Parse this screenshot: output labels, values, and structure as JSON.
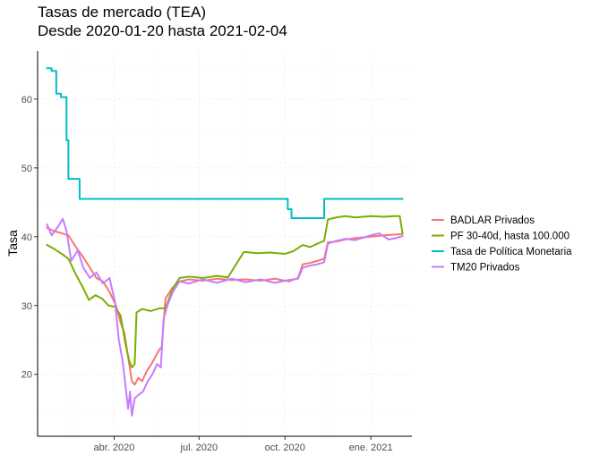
{
  "chart_data": {
    "type": "line",
    "title": "Tasas de mercado (TEA)",
    "subtitle": "Desde 2020-01-20 hasta 2021-02-04",
    "xlabel": "",
    "ylabel": "Tasa",
    "xlim": [
      "2020-01-10",
      "2021-02-14"
    ],
    "ylim": [
      11,
      67
    ],
    "x_ticks": [
      {
        "date": "2020-04-01",
        "label": "abr. 2020"
      },
      {
        "date": "2020-07-01",
        "label": "jul. 2020"
      },
      {
        "date": "2020-10-01",
        "label": "oct. 2020"
      },
      {
        "date": "2021-01-01",
        "label": "ene. 2021"
      }
    ],
    "y_ticks": [
      20,
      30,
      40,
      50,
      60
    ],
    "grid": true,
    "legend_position": "right",
    "series": [
      {
        "name": "BADLAR Privados",
        "color": "#F8766D",
        "points": [
          [
            "2020-01-20",
            41.3
          ],
          [
            "2020-01-28",
            40.8
          ],
          [
            "2020-02-05",
            40.5
          ],
          [
            "2020-02-12",
            40.2
          ],
          [
            "2020-02-20",
            38.5
          ],
          [
            "2020-02-28",
            37.0
          ],
          [
            "2020-03-06",
            35.5
          ],
          [
            "2020-03-13",
            34.0
          ],
          [
            "2020-03-20",
            33.5
          ],
          [
            "2020-03-27",
            32.0
          ],
          [
            "2020-04-03",
            30.0
          ],
          [
            "2020-04-08",
            27.5
          ],
          [
            "2020-04-12",
            26.0
          ],
          [
            "2020-04-16",
            22.5
          ],
          [
            "2020-04-20",
            19.0
          ],
          [
            "2020-04-23",
            18.5
          ],
          [
            "2020-04-27",
            19.5
          ],
          [
            "2020-05-01",
            19.0
          ],
          [
            "2020-05-06",
            20.5
          ],
          [
            "2020-05-11",
            21.5
          ],
          [
            "2020-05-15",
            22.5
          ],
          [
            "2020-05-19",
            23.5
          ],
          [
            "2020-05-22",
            24.0
          ],
          [
            "2020-05-26",
            31.0
          ],
          [
            "2020-06-02",
            32.5
          ],
          [
            "2020-06-10",
            33.5
          ],
          [
            "2020-06-20",
            33.8
          ],
          [
            "2020-07-05",
            33.6
          ],
          [
            "2020-07-20",
            33.9
          ],
          [
            "2020-08-05",
            33.7
          ],
          [
            "2020-08-20",
            33.8
          ],
          [
            "2020-09-05",
            33.6
          ],
          [
            "2020-09-20",
            33.9
          ],
          [
            "2020-10-05",
            33.5
          ],
          [
            "2020-10-15",
            34.0
          ],
          [
            "2020-10-20",
            36.0
          ],
          [
            "2020-10-28",
            36.2
          ],
          [
            "2020-11-05",
            36.5
          ],
          [
            "2020-11-12",
            36.8
          ],
          [
            "2020-11-16",
            39.2
          ],
          [
            "2020-11-25",
            39.3
          ],
          [
            "2020-12-05",
            39.6
          ],
          [
            "2020-12-15",
            39.8
          ],
          [
            "2021-01-01",
            40.0
          ],
          [
            "2021-01-15",
            40.2
          ],
          [
            "2021-01-25",
            40.3
          ],
          [
            "2021-02-04",
            40.4
          ]
        ]
      },
      {
        "name": "PF 30-40d, hasta 100.000",
        "color": "#7CAE00",
        "points": [
          [
            "2020-01-20",
            38.8
          ],
          [
            "2020-01-28",
            38.2
          ],
          [
            "2020-02-05",
            37.5
          ],
          [
            "2020-02-12",
            36.8
          ],
          [
            "2020-02-20",
            34.5
          ],
          [
            "2020-02-28",
            32.5
          ],
          [
            "2020-03-05",
            30.8
          ],
          [
            "2020-03-12",
            31.5
          ],
          [
            "2020-03-19",
            31.0
          ],
          [
            "2020-03-26",
            30.0
          ],
          [
            "2020-04-02",
            29.8
          ],
          [
            "2020-04-08",
            28.5
          ],
          [
            "2020-04-13",
            24.5
          ],
          [
            "2020-04-17",
            22.0
          ],
          [
            "2020-04-20",
            21.0
          ],
          [
            "2020-04-23",
            21.5
          ],
          [
            "2020-04-25",
            29.0
          ],
          [
            "2020-05-01",
            29.5
          ],
          [
            "2020-05-10",
            29.2
          ],
          [
            "2020-05-20",
            29.6
          ],
          [
            "2020-05-26",
            29.6
          ],
          [
            "2020-06-03",
            32.5
          ],
          [
            "2020-06-10",
            34.0
          ],
          [
            "2020-06-20",
            34.2
          ],
          [
            "2020-07-05",
            34.0
          ],
          [
            "2020-07-20",
            34.3
          ],
          [
            "2020-08-01",
            34.1
          ],
          [
            "2020-08-12",
            36.5
          ],
          [
            "2020-08-18",
            37.8
          ],
          [
            "2020-09-01",
            37.6
          ],
          [
            "2020-09-15",
            37.7
          ],
          [
            "2020-10-01",
            37.5
          ],
          [
            "2020-10-10",
            37.9
          ],
          [
            "2020-10-20",
            38.8
          ],
          [
            "2020-10-28",
            38.5
          ],
          [
            "2020-11-05",
            39.0
          ],
          [
            "2020-11-12",
            39.4
          ],
          [
            "2020-11-16",
            42.5
          ],
          [
            "2020-11-25",
            42.8
          ],
          [
            "2020-12-05",
            43.0
          ],
          [
            "2020-12-15",
            42.8
          ],
          [
            "2021-01-01",
            43.0
          ],
          [
            "2021-01-15",
            42.9
          ],
          [
            "2021-01-25",
            43.0
          ],
          [
            "2021-02-01",
            43.0
          ],
          [
            "2021-02-04",
            40.5
          ]
        ]
      },
      {
        "name": "Tasa de Política Monetaria",
        "color": "#00BFC4",
        "points": [
          [
            "2020-01-20",
            64.5
          ],
          [
            "2020-01-25",
            64.5
          ],
          [
            "2020-01-25",
            64.1
          ],
          [
            "2020-01-30",
            64.1
          ],
          [
            "2020-01-30",
            60.8
          ],
          [
            "2020-02-04",
            60.8
          ],
          [
            "2020-02-04",
            60.3
          ],
          [
            "2020-02-10",
            60.3
          ],
          [
            "2020-02-10",
            54.0
          ],
          [
            "2020-02-12",
            54.0
          ],
          [
            "2020-02-12",
            48.4
          ],
          [
            "2020-02-24",
            48.4
          ],
          [
            "2020-02-24",
            45.5
          ],
          [
            "2020-05-01",
            45.5
          ],
          [
            "2020-08-01",
            45.5
          ],
          [
            "2020-10-04",
            45.5
          ],
          [
            "2020-10-04",
            44.0
          ],
          [
            "2020-10-08",
            44.0
          ],
          [
            "2020-10-08",
            42.7
          ],
          [
            "2020-11-12",
            42.7
          ],
          [
            "2020-11-12",
            45.5
          ],
          [
            "2021-02-04",
            45.5
          ]
        ]
      },
      {
        "name": "TM20 Privados",
        "color": "#C77CFF",
        "points": [
          [
            "2020-01-20",
            41.8
          ],
          [
            "2020-01-25",
            40.2
          ],
          [
            "2020-02-01",
            41.5
          ],
          [
            "2020-02-06",
            42.6
          ],
          [
            "2020-02-10",
            40.8
          ],
          [
            "2020-02-15",
            36.5
          ],
          [
            "2020-02-22",
            38.0
          ],
          [
            "2020-02-28",
            35.5
          ],
          [
            "2020-03-06",
            34.0
          ],
          [
            "2020-03-13",
            34.8
          ],
          [
            "2020-03-20",
            33.2
          ],
          [
            "2020-03-27",
            34.0
          ],
          [
            "2020-04-02",
            30.5
          ],
          [
            "2020-04-06",
            25.0
          ],
          [
            "2020-04-10",
            22.0
          ],
          [
            "2020-04-13",
            18.5
          ],
          [
            "2020-04-16",
            15.0
          ],
          [
            "2020-04-18",
            17.5
          ],
          [
            "2020-04-20",
            14.0
          ],
          [
            "2020-04-23",
            16.5
          ],
          [
            "2020-04-27",
            17.0
          ],
          [
            "2020-05-02",
            17.5
          ],
          [
            "2020-05-07",
            19.0
          ],
          [
            "2020-05-12",
            20.0
          ],
          [
            "2020-05-17",
            21.5
          ],
          [
            "2020-05-21",
            21.0
          ],
          [
            "2020-05-24",
            28.0
          ],
          [
            "2020-05-28",
            30.0
          ],
          [
            "2020-06-03",
            32.0
          ],
          [
            "2020-06-10",
            33.5
          ],
          [
            "2020-06-20",
            33.2
          ],
          [
            "2020-07-05",
            33.8
          ],
          [
            "2020-07-20",
            33.3
          ],
          [
            "2020-08-05",
            33.9
          ],
          [
            "2020-08-20",
            33.4
          ],
          [
            "2020-09-05",
            33.8
          ],
          [
            "2020-09-20",
            33.3
          ],
          [
            "2020-10-05",
            33.7
          ],
          [
            "2020-10-15",
            33.9
          ],
          [
            "2020-10-20",
            35.5
          ],
          [
            "2020-10-28",
            35.8
          ],
          [
            "2020-11-05",
            36.0
          ],
          [
            "2020-11-12",
            36.3
          ],
          [
            "2020-11-16",
            39.0
          ],
          [
            "2020-11-25",
            39.4
          ],
          [
            "2020-12-05",
            39.7
          ],
          [
            "2020-12-15",
            39.5
          ],
          [
            "2021-01-01",
            40.2
          ],
          [
            "2021-01-10",
            40.5
          ],
          [
            "2021-01-20",
            39.6
          ],
          [
            "2021-01-28",
            39.8
          ],
          [
            "2021-02-04",
            40.1
          ]
        ]
      }
    ]
  }
}
